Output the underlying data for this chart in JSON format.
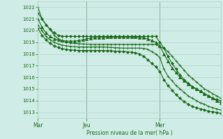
{
  "title": "Pression niveau de la mer( hPa )",
  "bg_color": "#d0ece6",
  "line_color": "#1a6b1a",
  "grid_color": "#b0d4c8",
  "ylim": [
    1012.5,
    1022.5
  ],
  "yticks": [
    1013,
    1014,
    1015,
    1016,
    1017,
    1018,
    1019,
    1020,
    1021,
    1022
  ],
  "xtick_labels": [
    "Mar",
    "Jeu",
    "Mer"
  ],
  "day_positions": [
    0,
    48,
    120
  ],
  "n_points": 181,
  "series": [
    {
      "points": [
        [
          0,
          1022
        ],
        [
          4,
          1021
        ],
        [
          8,
          1020.5
        ],
        [
          12,
          1020.1
        ],
        [
          16,
          1019.6
        ],
        [
          20,
          1019.3
        ],
        [
          24,
          1019.1
        ],
        [
          28,
          1019.0
        ],
        [
          32,
          1018.95
        ],
        [
          36,
          1018.9
        ],
        [
          40,
          1018.88
        ],
        [
          44,
          1018.86
        ],
        [
          48,
          1018.84
        ],
        [
          52,
          1018.82
        ],
        [
          56,
          1018.82
        ],
        [
          60,
          1018.82
        ],
        [
          64,
          1018.82
        ],
        [
          68,
          1018.82
        ],
        [
          72,
          1018.82
        ],
        [
          76,
          1018.82
        ],
        [
          80,
          1018.82
        ],
        [
          84,
          1018.82
        ],
        [
          88,
          1018.82
        ],
        [
          92,
          1018.82
        ],
        [
          96,
          1018.82
        ],
        [
          100,
          1018.82
        ],
        [
          104,
          1018.82
        ],
        [
          108,
          1018.82
        ],
        [
          112,
          1018.82
        ],
        [
          116,
          1018.82
        ],
        [
          120,
          1018.6
        ],
        [
          124,
          1018.5
        ],
        [
          128,
          1018.2
        ],
        [
          132,
          1017.8
        ],
        [
          136,
          1017.4
        ],
        [
          140,
          1017.0
        ],
        [
          144,
          1016.6
        ],
        [
          148,
          1016.2
        ],
        [
          152,
          1015.9
        ],
        [
          156,
          1015.6
        ],
        [
          160,
          1015.3
        ],
        [
          164,
          1015.0
        ],
        [
          168,
          1014.8
        ],
        [
          172,
          1014.6
        ],
        [
          176,
          1014.4
        ],
        [
          180,
          1014.2
        ]
      ],
      "marker": "+",
      "ms": 3,
      "lw": 0.8
    },
    {
      "points": [
        [
          0,
          1021
        ],
        [
          4,
          1020.3
        ],
        [
          8,
          1019.8
        ],
        [
          12,
          1019.5
        ],
        [
          16,
          1019.3
        ],
        [
          20,
          1019.2
        ],
        [
          24,
          1019.15
        ],
        [
          28,
          1019.1
        ],
        [
          32,
          1019.1
        ],
        [
          36,
          1019.1
        ],
        [
          40,
          1019.15
        ],
        [
          44,
          1019.2
        ],
        [
          48,
          1019.3
        ],
        [
          52,
          1019.35
        ],
        [
          56,
          1019.4
        ],
        [
          60,
          1019.42
        ],
        [
          64,
          1019.43
        ],
        [
          68,
          1019.44
        ],
        [
          72,
          1019.44
        ],
        [
          76,
          1019.44
        ],
        [
          80,
          1019.44
        ],
        [
          84,
          1019.44
        ],
        [
          88,
          1019.44
        ],
        [
          92,
          1019.44
        ],
        [
          96,
          1019.44
        ],
        [
          100,
          1019.42
        ],
        [
          104,
          1019.38
        ],
        [
          108,
          1019.3
        ],
        [
          112,
          1019.15
        ],
        [
          116,
          1019.0
        ],
        [
          120,
          1018.7
        ],
        [
          124,
          1018.0
        ],
        [
          128,
          1017.4
        ],
        [
          132,
          1016.8
        ],
        [
          136,
          1016.4
        ],
        [
          140,
          1016.0
        ],
        [
          144,
          1015.7
        ],
        [
          148,
          1015.4
        ],
        [
          152,
          1015.2
        ],
        [
          156,
          1015.0
        ],
        [
          160,
          1014.8
        ],
        [
          164,
          1014.6
        ],
        [
          168,
          1014.4
        ],
        [
          172,
          1014.2
        ],
        [
          176,
          1014.0
        ],
        [
          180,
          1013.8
        ]
      ],
      "marker": "^",
      "ms": 3,
      "lw": 0.8
    },
    {
      "points": [
        [
          0,
          1020.5
        ],
        [
          4,
          1020.0
        ],
        [
          8,
          1019.5
        ],
        [
          12,
          1019.2
        ],
        [
          16,
          1019.0
        ],
        [
          20,
          1018.85
        ],
        [
          24,
          1018.75
        ],
        [
          28,
          1018.7
        ],
        [
          32,
          1018.65
        ],
        [
          36,
          1018.62
        ],
        [
          40,
          1018.6
        ],
        [
          44,
          1018.6
        ],
        [
          48,
          1018.6
        ],
        [
          52,
          1018.6
        ],
        [
          56,
          1018.6
        ],
        [
          60,
          1018.6
        ],
        [
          64,
          1018.6
        ],
        [
          68,
          1018.58
        ],
        [
          72,
          1018.56
        ],
        [
          76,
          1018.54
        ],
        [
          80,
          1018.52
        ],
        [
          84,
          1018.5
        ],
        [
          88,
          1018.5
        ],
        [
          92,
          1018.5
        ],
        [
          96,
          1018.5
        ],
        [
          100,
          1018.5
        ],
        [
          104,
          1018.48
        ],
        [
          108,
          1018.4
        ],
        [
          112,
          1018.2
        ],
        [
          116,
          1018.0
        ],
        [
          120,
          1017.7
        ],
        [
          124,
          1016.7
        ],
        [
          128,
          1016.1
        ],
        [
          132,
          1015.7
        ],
        [
          136,
          1015.3
        ],
        [
          140,
          1015.0
        ],
        [
          144,
          1014.7
        ],
        [
          148,
          1014.4
        ],
        [
          152,
          1014.2
        ],
        [
          156,
          1014.0
        ],
        [
          160,
          1013.8
        ],
        [
          164,
          1013.7
        ],
        [
          168,
          1013.5
        ],
        [
          172,
          1013.4
        ],
        [
          176,
          1013.3
        ],
        [
          180,
          1013.2
        ]
      ],
      "marker": "+",
      "ms": 3,
      "lw": 0.8
    },
    {
      "points": [
        [
          0,
          1020.2
        ],
        [
          4,
          1019.6
        ],
        [
          8,
          1019.2
        ],
        [
          12,
          1018.9
        ],
        [
          16,
          1018.7
        ],
        [
          20,
          1018.55
        ],
        [
          24,
          1018.45
        ],
        [
          28,
          1018.38
        ],
        [
          32,
          1018.35
        ],
        [
          36,
          1018.32
        ],
        [
          40,
          1018.3
        ],
        [
          44,
          1018.3
        ],
        [
          48,
          1018.3
        ],
        [
          52,
          1018.3
        ],
        [
          56,
          1018.3
        ],
        [
          60,
          1018.3
        ],
        [
          64,
          1018.3
        ],
        [
          68,
          1018.28
        ],
        [
          72,
          1018.26
        ],
        [
          76,
          1018.24
        ],
        [
          80,
          1018.22
        ],
        [
          84,
          1018.2
        ],
        [
          88,
          1018.18
        ],
        [
          92,
          1018.15
        ],
        [
          96,
          1018.1
        ],
        [
          100,
          1018.0
        ],
        [
          104,
          1017.8
        ],
        [
          108,
          1017.5
        ],
        [
          112,
          1017.2
        ],
        [
          116,
          1016.9
        ],
        [
          120,
          1016.5
        ],
        [
          124,
          1015.8
        ],
        [
          128,
          1015.3
        ],
        [
          132,
          1014.9
        ],
        [
          136,
          1014.5
        ],
        [
          140,
          1014.2
        ],
        [
          144,
          1013.9
        ],
        [
          148,
          1013.7
        ],
        [
          152,
          1013.5
        ],
        [
          156,
          1013.4
        ],
        [
          160,
          1013.3
        ],
        [
          164,
          1013.2
        ],
        [
          168,
          1013.1
        ],
        [
          172,
          1013.05
        ],
        [
          176,
          1013.0
        ],
        [
          180,
          1012.9
        ]
      ],
      "marker": "D",
      "ms": 2,
      "lw": 0.8
    },
    {
      "points": [
        [
          0,
          1021.5
        ],
        [
          4,
          1021.0
        ],
        [
          8,
          1020.5
        ],
        [
          12,
          1020.1
        ],
        [
          16,
          1019.8
        ],
        [
          20,
          1019.6
        ],
        [
          24,
          1019.5
        ],
        [
          28,
          1019.5
        ],
        [
          32,
          1019.5
        ],
        [
          36,
          1019.5
        ],
        [
          40,
          1019.5
        ],
        [
          44,
          1019.5
        ],
        [
          48,
          1019.5
        ],
        [
          52,
          1019.5
        ],
        [
          56,
          1019.5
        ],
        [
          60,
          1019.5
        ],
        [
          64,
          1019.5
        ],
        [
          68,
          1019.5
        ],
        [
          72,
          1019.5
        ],
        [
          76,
          1019.5
        ],
        [
          80,
          1019.5
        ],
        [
          84,
          1019.5
        ],
        [
          88,
          1019.5
        ],
        [
          92,
          1019.5
        ],
        [
          96,
          1019.5
        ],
        [
          100,
          1019.5
        ],
        [
          104,
          1019.5
        ],
        [
          108,
          1019.5
        ],
        [
          112,
          1019.5
        ],
        [
          116,
          1019.5
        ],
        [
          120,
          1019.0
        ],
        [
          124,
          1018.5
        ],
        [
          128,
          1017.8
        ],
        [
          132,
          1017.2
        ],
        [
          136,
          1016.7
        ],
        [
          140,
          1016.2
        ],
        [
          144,
          1015.8
        ],
        [
          148,
          1015.5
        ],
        [
          152,
          1015.2
        ],
        [
          156,
          1015.0
        ],
        [
          160,
          1014.8
        ],
        [
          164,
          1014.6
        ],
        [
          168,
          1014.4
        ],
        [
          172,
          1014.2
        ],
        [
          176,
          1014.1
        ],
        [
          180,
          1014.0
        ]
      ],
      "marker": "D",
      "ms": 2,
      "lw": 0.8
    }
  ]
}
